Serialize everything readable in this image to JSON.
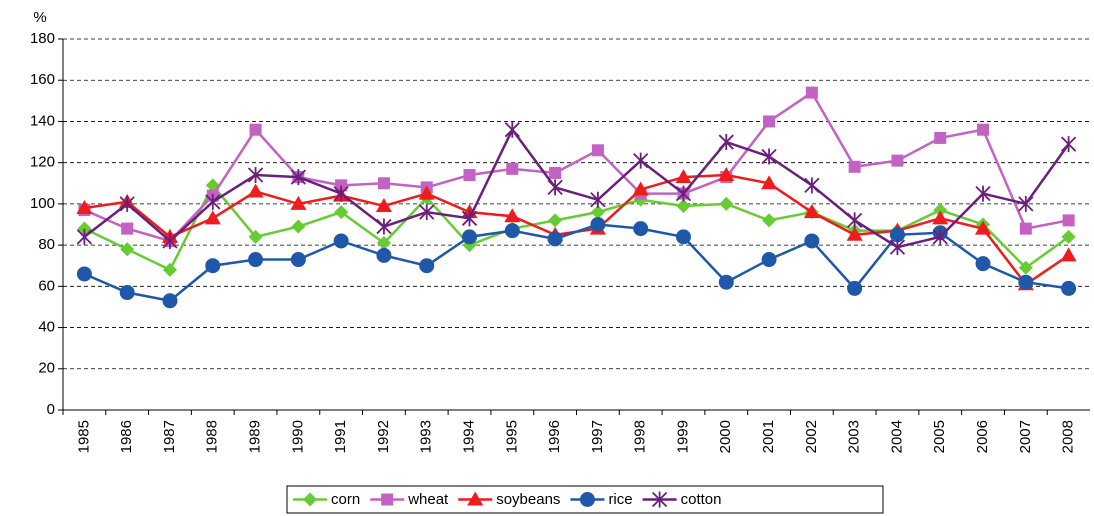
{
  "chart_data": {
    "type": "line",
    "y_axis_label": "%",
    "categories": [
      "1985",
      "1986",
      "1987",
      "1988",
      "1989",
      "1990",
      "1991",
      "1992",
      "1993",
      "1994",
      "1995",
      "1996",
      "1997",
      "1998",
      "1999",
      "2000",
      "2001",
      "2002",
      "2003",
      "2004",
      "2005",
      "2006",
      "2007",
      "2008"
    ],
    "series": [
      {
        "name": "corn",
        "color": "#66cc33",
        "marker": "diamond",
        "values": [
          88,
          78,
          68,
          109,
          84,
          89,
          96,
          81,
          103,
          80,
          88,
          92,
          96,
          102,
          99,
          100,
          92,
          96,
          87,
          87,
          97,
          90,
          69,
          84
        ]
      },
      {
        "name": "wheat",
        "color": "#c262c2",
        "marker": "square",
        "values": [
          97,
          88,
          82,
          104,
          136,
          113,
          109,
          110,
          108,
          114,
          117,
          115,
          126,
          105,
          105,
          113,
          140,
          154,
          118,
          121,
          132,
          136,
          88,
          92
        ]
      },
      {
        "name": "soybeans",
        "color": "#ee1c1c",
        "marker": "triangle",
        "values": [
          98,
          101,
          84,
          93,
          106,
          100,
          104,
          99,
          105,
          96,
          94,
          85,
          88,
          107,
          113,
          114,
          110,
          96,
          85,
          87,
          93,
          88,
          61,
          75
        ]
      },
      {
        "name": "rice",
        "color": "#1f58a8",
        "marker": "circle",
        "values": [
          66,
          57,
          53,
          70,
          73,
          73,
          82,
          75,
          70,
          84,
          87,
          83,
          90,
          88,
          84,
          62,
          73,
          82,
          59,
          85,
          86,
          71,
          62,
          59
        ]
      },
      {
        "name": "cotton",
        "color": "#6b1f7c",
        "marker": "star",
        "values": [
          84,
          100,
          82,
          101,
          114,
          113,
          105,
          89,
          96,
          93,
          136,
          108,
          102,
          121,
          105,
          130,
          123,
          109,
          92,
          79,
          84,
          105,
          100,
          129
        ]
      }
    ],
    "ylim": [
      0,
      180
    ],
    "yticks": [
      0,
      20,
      40,
      60,
      80,
      100,
      120,
      140,
      160,
      180
    ],
    "grid": true
  }
}
